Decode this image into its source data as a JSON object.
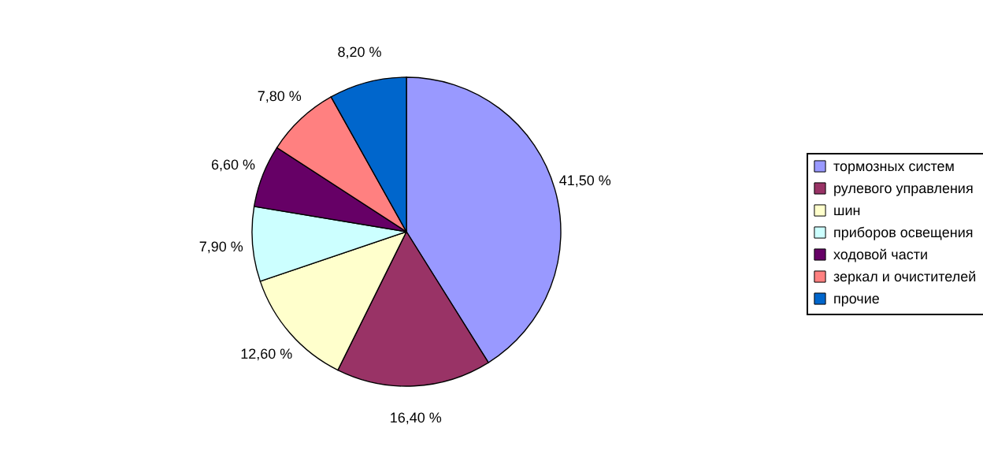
{
  "chart_data": {
    "type": "pie",
    "categories": [
      "тормозных систем",
      "рулевого управления",
      "шин",
      "приборов освещения",
      "ходовой части",
      "зеркал и очистителей",
      "прочие"
    ],
    "values": [
      41.5,
      16.4,
      12.6,
      7.9,
      6.6,
      7.8,
      8.2
    ],
    "value_labels": [
      "41,50 %",
      "16,40 %",
      "12,60 %",
      "7,90 %",
      "6,60 %",
      "7,80 %",
      "8,20 %"
    ],
    "colors": [
      "#9999ff",
      "#993366",
      "#ffffcc",
      "#ccffff",
      "#660066",
      "#ff8080",
      "#0066cc"
    ],
    "legend": "right"
  }
}
